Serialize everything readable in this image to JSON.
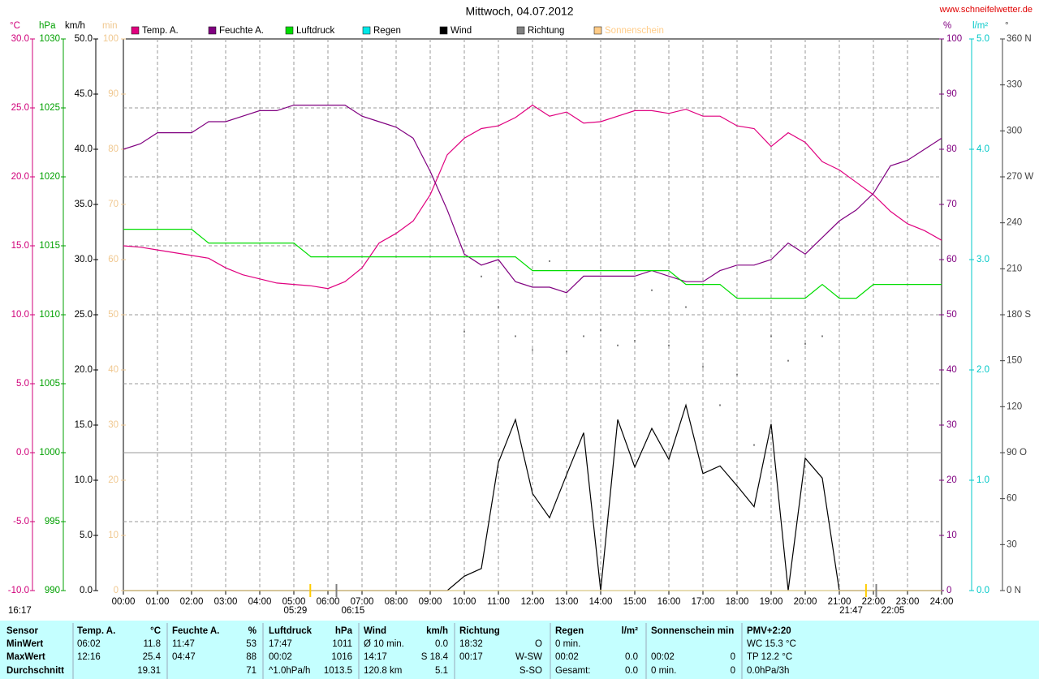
{
  "chart_data": {
    "type": "line",
    "title": "Mittwoch, 04.07.2012",
    "url": "www.schneifelwetter.de",
    "time": "16:17",
    "xlim": [
      0,
      24
    ],
    "xticks": [
      {
        "value": 0,
        "label": "00:00"
      },
      {
        "value": 1,
        "label": "01:00"
      },
      {
        "value": 2,
        "label": "02:00"
      },
      {
        "value": 3,
        "label": "03:00"
      },
      {
        "value": 4,
        "label": "04:00"
      },
      {
        "value": 5,
        "label": "05:00"
      },
      {
        "value": 6,
        "label": "06:00"
      },
      {
        "value": 7,
        "label": "07:00"
      },
      {
        "value": 8,
        "label": "08:00"
      },
      {
        "value": 9,
        "label": "09:00"
      },
      {
        "value": 10,
        "label": "10:00"
      },
      {
        "value": 11,
        "label": "11:00"
      },
      {
        "value": 12,
        "label": "12:00"
      },
      {
        "value": 13,
        "label": "13:00"
      },
      {
        "value": 14,
        "label": "14:00"
      },
      {
        "value": 15,
        "label": "15:00"
      },
      {
        "value": 16,
        "label": "16:00"
      },
      {
        "value": 17,
        "label": "17:00"
      },
      {
        "value": 18,
        "label": "18:00"
      },
      {
        "value": 19,
        "label": "19:00"
      },
      {
        "value": 20,
        "label": "20:00"
      },
      {
        "value": 21,
        "label": "21:00"
      },
      {
        "value": 22,
        "label": "22:00"
      },
      {
        "value": 23,
        "label": "23:00"
      },
      {
        "value": 24,
        "label": "24:00"
      }
    ],
    "grid": true,
    "axes": [
      {
        "unit": "°C",
        "color": "#d0007a",
        "lim": [
          -10,
          30
        ],
        "ticks": [
          {
            "value": 30,
            "label": "30.0"
          },
          {
            "value": 25,
            "label": "25.0"
          },
          {
            "value": 20,
            "label": "20.0"
          },
          {
            "value": 15,
            "label": "15.0"
          },
          {
            "value": 10,
            "label": "10.0"
          },
          {
            "value": 5,
            "label": "5.0"
          },
          {
            "value": 0,
            "label": "0.0"
          },
          {
            "value": -5,
            "label": "-5.0"
          },
          {
            "value": -10,
            "label": "-10.0"
          }
        ]
      },
      {
        "unit": "hPa",
        "color": "#00a000",
        "lim": [
          990,
          1030
        ],
        "ticks": [
          1030,
          1025,
          1020,
          1015,
          1010,
          1005,
          1000,
          995,
          990
        ]
      },
      {
        "unit": "km/h",
        "color": "#000000",
        "lim": [
          0,
          50
        ],
        "ticks": [
          {
            "value": 50,
            "label": "50.0"
          },
          {
            "value": 45,
            "label": "45.0"
          },
          {
            "value": 40,
            "label": "40.0"
          },
          {
            "value": 35,
            "label": "35.0"
          },
          {
            "value": 30,
            "label": "30.0"
          },
          {
            "value": 25,
            "label": "25.0"
          },
          {
            "value": 20,
            "label": "20.0"
          },
          {
            "value": 15,
            "label": "15.0"
          },
          {
            "value": 10,
            "label": "10.0"
          },
          {
            "value": 5,
            "label": "5.0"
          },
          {
            "value": 0,
            "label": "0.0"
          }
        ]
      },
      {
        "unit": "min",
        "color": "#f0c890",
        "lim": [
          0,
          100
        ],
        "ticks": [
          100,
          90,
          80,
          70,
          60,
          50,
          40,
          30,
          20,
          10,
          0
        ]
      },
      {
        "unit": "%",
        "color": "#800080",
        "lim": [
          0,
          100
        ],
        "ticks": [
          100,
          90,
          80,
          70,
          60,
          50,
          40,
          30,
          20,
          10,
          0
        ]
      },
      {
        "unit": "l/m²",
        "color": "#00c8c8",
        "lim": [
          0,
          5
        ],
        "ticks": [
          {
            "value": 5,
            "label": "5.0"
          },
          {
            "value": 4,
            "label": "4.0"
          },
          {
            "value": 3,
            "label": "3.0"
          },
          {
            "value": 2,
            "label": "2.0"
          },
          {
            "value": 1,
            "label": "1.0"
          },
          {
            "value": 0,
            "label": "0.0"
          }
        ]
      },
      {
        "unit": "°",
        "color": "#404040",
        "lim": [
          0,
          360
        ],
        "ticks": [
          {
            "value": 360,
            "label": "360 N"
          },
          330,
          300,
          {
            "value": 270,
            "label": "270 W"
          },
          240,
          210,
          {
            "value": 180,
            "label": "180 S"
          },
          150,
          120,
          {
            "value": 90,
            "label": "90 O"
          },
          60,
          30,
          {
            "value": 0,
            "label": "0 N"
          }
        ]
      }
    ],
    "x": [
      0,
      0.5,
      1,
      1.5,
      2,
      2.5,
      3,
      3.5,
      4,
      4.5,
      5,
      5.5,
      6,
      6.5,
      7,
      7.5,
      8,
      8.5,
      9,
      9.5,
      10,
      10.5,
      11,
      11.5,
      12,
      12.5,
      13,
      13.5,
      14,
      14.5,
      15,
      15.5,
      16,
      16.5,
      17,
      17.5,
      18,
      18.5,
      19,
      19.5,
      20,
      20.5,
      21,
      21.5,
      22,
      22.5,
      23,
      23.5,
      24
    ],
    "series": [
      {
        "name": "Temp. A.",
        "color": "#e0007f",
        "axis": "°C",
        "values": [
          15.0,
          14.9,
          14.7,
          14.5,
          14.3,
          14.1,
          13.4,
          12.9,
          12.6,
          12.3,
          12.2,
          12.1,
          11.9,
          12.4,
          13.4,
          15.2,
          15.9,
          16.8,
          18.7,
          21.6,
          22.8,
          23.5,
          23.7,
          24.3,
          25.2,
          24.4,
          24.7,
          23.9,
          24.0,
          24.4,
          24.8,
          24.8,
          24.6,
          24.9,
          24.4,
          24.4,
          23.7,
          23.5,
          22.2,
          23.2,
          22.5,
          21.1,
          20.5,
          19.6,
          18.7,
          17.5,
          16.6,
          16.1,
          15.4
        ]
      },
      {
        "name": "Feuchte A.",
        "color": "#800080",
        "axis": "%",
        "values": [
          80,
          81,
          83,
          83,
          83,
          85,
          85,
          86,
          87,
          87,
          88,
          88,
          88,
          88,
          86,
          85,
          84,
          82,
          76,
          69,
          61,
          59,
          60,
          56,
          55,
          55,
          54,
          57,
          57,
          57,
          57,
          58,
          57,
          56,
          56,
          58,
          59,
          59,
          60,
          63,
          61,
          64,
          67,
          69,
          72,
          77,
          78,
          80,
          82
        ]
      },
      {
        "name": "Luftdruck",
        "color": "#00dd00",
        "axis": "hPa",
        "values": [
          1016.2,
          1016.2,
          1016.2,
          1016.2,
          1016.2,
          1015.2,
          1015.2,
          1015.2,
          1015.2,
          1015.2,
          1015.2,
          1014.2,
          1014.2,
          1014.2,
          1014.2,
          1014.2,
          1014.2,
          1014.2,
          1014.2,
          1014.2,
          1014.2,
          1014.2,
          1014.2,
          1014.2,
          1013.2,
          1013.2,
          1013.2,
          1013.2,
          1013.2,
          1013.2,
          1013.2,
          1013.2,
          1013.2,
          1012.2,
          1012.2,
          1012.2,
          1011.2,
          1011.2,
          1011.2,
          1011.2,
          1011.2,
          1012.2,
          1011.2,
          1011.2,
          1012.2,
          1012.2,
          1012.2,
          1012.2,
          1012.2
        ]
      },
      {
        "name": "Regen",
        "color": "#00e8e8",
        "axis": "l/m²",
        "values": [
          0,
          0,
          0,
          0,
          0,
          0,
          0,
          0,
          0,
          0,
          0,
          0,
          0,
          0,
          0,
          0,
          0,
          0,
          0,
          0,
          0,
          0,
          0,
          0,
          0,
          0,
          0,
          0,
          0,
          0,
          0,
          0,
          0,
          0,
          0,
          0,
          0,
          0,
          0,
          0,
          0,
          0,
          0,
          0,
          0,
          0,
          0,
          0,
          0
        ]
      },
      {
        "name": "Wind",
        "color": "#000000",
        "axis": "km/h",
        "values": [
          0,
          0,
          0,
          0,
          0,
          0,
          0,
          0,
          0,
          0,
          0,
          0,
          0,
          0,
          0,
          0,
          0,
          0,
          0,
          0,
          1.3,
          2.0,
          11.6,
          15.5,
          8.8,
          6.6,
          10.5,
          14.3,
          0,
          15.5,
          11.2,
          14.7,
          11.9,
          16.8,
          10.6,
          11.3,
          9.5,
          7.6,
          15.1,
          0,
          12.0,
          10.2,
          0,
          0,
          0,
          0,
          0,
          0,
          0
        ]
      },
      {
        "name": "Richtung",
        "color": "#808080",
        "axis": "°",
        "style": "points",
        "values": [
          null,
          null,
          null,
          null,
          null,
          null,
          null,
          null,
          null,
          null,
          null,
          null,
          null,
          null,
          null,
          null,
          null,
          null,
          null,
          null,
          169,
          205,
          185,
          166,
          157,
          215,
          156,
          166,
          170,
          160,
          163,
          196,
          160,
          185,
          146,
          121,
          141,
          95,
          166,
          150,
          161,
          166,
          null,
          null,
          null,
          null,
          null,
          null,
          null
        ]
      },
      {
        "name": "Sonnenschein",
        "color": "#ffcc88",
        "axis": "min",
        "values": [
          0,
          0,
          0,
          0,
          0,
          0,
          0,
          0,
          0,
          0,
          0,
          0,
          0,
          0,
          0,
          0,
          0,
          0,
          0,
          0,
          0,
          0,
          0,
          0,
          0,
          0,
          0,
          0,
          0,
          0,
          0,
          0,
          0,
          0,
          0,
          0,
          0,
          0,
          0,
          0,
          0,
          0,
          0,
          0,
          0,
          0,
          0,
          0,
          0
        ]
      }
    ],
    "markers": [
      {
        "label": "05:29",
        "x": 5.483,
        "color": "#ffcc00"
      },
      {
        "label": "06:15",
        "x": 6.25,
        "color": "#808080"
      },
      {
        "label": "21:47",
        "x": 21.783,
        "color": "#ffcc00"
      },
      {
        "label": "22:05",
        "x": 22.083,
        "color": "#808080"
      }
    ]
  },
  "table": {
    "header": [
      {
        "left": "Sensor"
      },
      {
        "left": "Temp. A.",
        "right": "°C"
      },
      {
        "left": "Feuchte A.",
        "right": "%"
      },
      {
        "left": "Luftdruck",
        "right": "hPa"
      },
      {
        "left": "Wind",
        "right": "km/h"
      },
      {
        "left": "Richtung"
      },
      {
        "left": "Regen",
        "right": "l/m²"
      },
      {
        "left": "Sonnenschein min"
      },
      {
        "left": "PMV+2:20"
      }
    ],
    "rows": [
      [
        {
          "left": "MinWert"
        },
        {
          "left": "06:02",
          "right": "11.8"
        },
        {
          "left": "11:47",
          "right": "53"
        },
        {
          "left": "17:47",
          "right": "1011"
        },
        {
          "left": "Ø 10 min.",
          "right": "0.0"
        },
        {
          "left": "18:32",
          "right": "O"
        },
        {
          "left": "0 min."
        },
        null,
        {
          "left": "WC 15.3 °C"
        }
      ],
      [
        {
          "left": "MaxWert"
        },
        {
          "left": "12:16",
          "right": "25.4"
        },
        {
          "left": "04:47",
          "right": "88"
        },
        {
          "left": "00:02",
          "right": "1016"
        },
        {
          "left": "14:17",
          "right": "S 18.4"
        },
        {
          "left": "00:17",
          "right": "W-SW"
        },
        {
          "left": "00:02",
          "right": "0.0"
        },
        {
          "left": "00:02",
          "right": "0"
        },
        {
          "left": "TP 12.2 °C"
        }
      ],
      [
        {
          "left": "Durchschnitt"
        },
        {
          "right": "19.31"
        },
        {
          "right": "71"
        },
        {
          "left": "^1.0hPa/h",
          "right": "1013.5"
        },
        {
          "left": "120.8 km",
          "right": "5.1"
        },
        {
          "right": "S-SO"
        },
        {
          "left": "Gesamt:",
          "right": "0.0"
        },
        {
          "left": "0 min.",
          "right": "0"
        },
        {
          "left": "0.0hPa/3h"
        }
      ]
    ]
  }
}
